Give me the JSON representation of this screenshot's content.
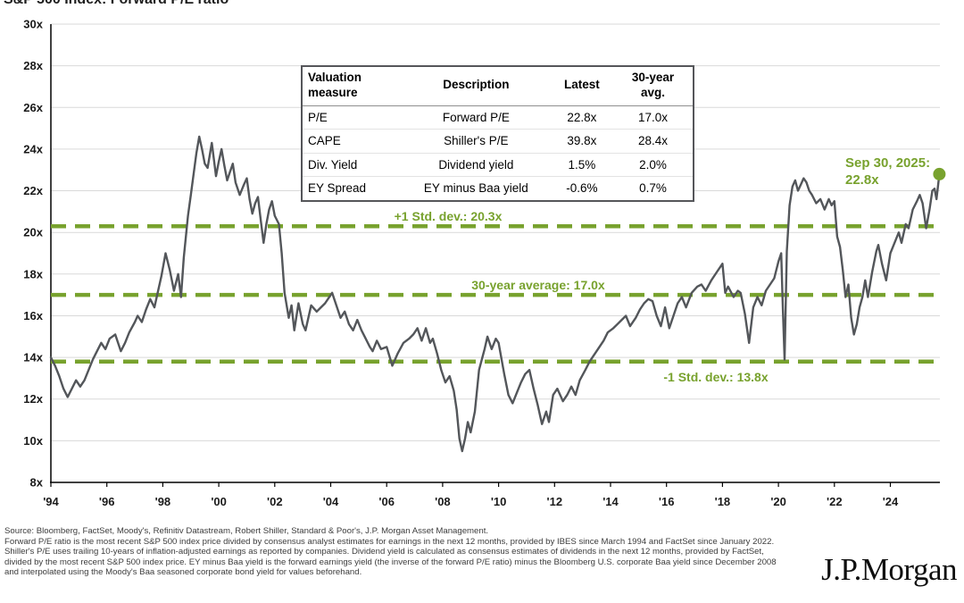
{
  "title": "S&P 500 Index: Forward P/E ratio",
  "chart_data": {
    "type": "line",
    "title": "S&P 500 Index: Forward P/E ratio",
    "grid": "horizontal",
    "x_axis": {
      "range": [
        1994,
        2025.83
      ],
      "tick_years": [
        1994,
        1996,
        1998,
        2000,
        2002,
        2004,
        2006,
        2008,
        2010,
        2012,
        2014,
        2016,
        2018,
        2020,
        2022,
        2024
      ],
      "ticks": [
        "'94",
        "'96",
        "'98",
        "'00",
        "'02",
        "'04",
        "'06",
        "'08",
        "'10",
        "'12",
        "'14",
        "'16",
        "'18",
        "'20",
        "'22",
        "'24"
      ]
    },
    "y_axis": {
      "range": [
        8,
        30
      ],
      "tick_values": [
        8,
        10,
        12,
        14,
        16,
        18,
        20,
        22,
        24,
        26,
        28,
        30
      ],
      "ticks": [
        "8x",
        "10x",
        "12x",
        "14x",
        "16x",
        "18x",
        "20x",
        "22x",
        "24x",
        "26x",
        "28x",
        "30x"
      ]
    },
    "reference_lines": [
      {
        "label": "+1 Std. dev.: 20.3x",
        "value": 20.3
      },
      {
        "label": "30-year average: 17.0x",
        "value": 17.0
      },
      {
        "label": "-1 Std. dev.: 13.8x",
        "value": 13.8
      }
    ],
    "end_point": {
      "x": 2025.75,
      "y": 22.8,
      "label_line1": "Sep 30, 2025:",
      "label_line2": "22.8x"
    },
    "colors": {
      "line": "#53565a",
      "accent_green": "#78a22e",
      "gridline": "#d9d9d9",
      "axis": "#000000"
    },
    "series": [
      {
        "name": "S&P 500 forward P/E",
        "points": [
          [
            1994.0,
            14.0
          ],
          [
            1994.15,
            13.6
          ],
          [
            1994.3,
            13.1
          ],
          [
            1994.45,
            12.5
          ],
          [
            1994.6,
            12.1
          ],
          [
            1994.75,
            12.5
          ],
          [
            1994.9,
            12.9
          ],
          [
            1995.05,
            12.6
          ],
          [
            1995.2,
            12.9
          ],
          [
            1995.35,
            13.4
          ],
          [
            1995.5,
            13.9
          ],
          [
            1995.65,
            14.3
          ],
          [
            1995.8,
            14.7
          ],
          [
            1995.95,
            14.4
          ],
          [
            1996.1,
            14.9
          ],
          [
            1996.3,
            15.1
          ],
          [
            1996.5,
            14.3
          ],
          [
            1996.65,
            14.7
          ],
          [
            1996.8,
            15.2
          ],
          [
            1997.0,
            15.7
          ],
          [
            1997.1,
            16.0
          ],
          [
            1997.25,
            15.7
          ],
          [
            1997.4,
            16.3
          ],
          [
            1997.55,
            16.8
          ],
          [
            1997.7,
            16.4
          ],
          [
            1997.8,
            17.0
          ],
          [
            1997.95,
            17.9
          ],
          [
            1998.1,
            19.0
          ],
          [
            1998.25,
            18.2
          ],
          [
            1998.4,
            17.2
          ],
          [
            1998.55,
            18.0
          ],
          [
            1998.65,
            16.9
          ],
          [
            1998.75,
            18.8
          ],
          [
            1998.9,
            20.8
          ],
          [
            1999.0,
            21.8
          ],
          [
            1999.1,
            22.8
          ],
          [
            1999.2,
            23.8
          ],
          [
            1999.3,
            24.6
          ],
          [
            1999.4,
            24.0
          ],
          [
            1999.5,
            23.3
          ],
          [
            1999.6,
            23.1
          ],
          [
            1999.75,
            24.3
          ],
          [
            1999.9,
            22.7
          ],
          [
            2000.0,
            23.4
          ],
          [
            2000.1,
            24.0
          ],
          [
            2000.2,
            23.2
          ],
          [
            2000.3,
            22.5
          ],
          [
            2000.4,
            22.9
          ],
          [
            2000.5,
            23.3
          ],
          [
            2000.6,
            22.4
          ],
          [
            2000.75,
            21.8
          ],
          [
            2000.9,
            22.3
          ],
          [
            2001.0,
            22.6
          ],
          [
            2001.1,
            21.6
          ],
          [
            2001.2,
            20.9
          ],
          [
            2001.3,
            21.4
          ],
          [
            2001.4,
            21.7
          ],
          [
            2001.5,
            20.6
          ],
          [
            2001.6,
            19.5
          ],
          [
            2001.7,
            20.4
          ],
          [
            2001.8,
            21.1
          ],
          [
            2001.9,
            21.5
          ],
          [
            2002.0,
            20.8
          ],
          [
            2002.15,
            20.4
          ],
          [
            2002.25,
            19.0
          ],
          [
            2002.35,
            17.1
          ],
          [
            2002.5,
            15.9
          ],
          [
            2002.6,
            16.5
          ],
          [
            2002.7,
            15.3
          ],
          [
            2002.85,
            16.6
          ],
          [
            2003.0,
            15.6
          ],
          [
            2003.1,
            15.3
          ],
          [
            2003.3,
            16.5
          ],
          [
            2003.5,
            16.2
          ],
          [
            2003.65,
            16.4
          ],
          [
            2003.8,
            16.6
          ],
          [
            2004.05,
            17.1
          ],
          [
            2004.2,
            16.5
          ],
          [
            2004.35,
            15.9
          ],
          [
            2004.5,
            16.2
          ],
          [
            2004.65,
            15.6
          ],
          [
            2004.8,
            15.3
          ],
          [
            2004.95,
            15.8
          ],
          [
            2005.1,
            15.3
          ],
          [
            2005.25,
            14.9
          ],
          [
            2005.4,
            14.5
          ],
          [
            2005.5,
            14.3
          ],
          [
            2005.65,
            14.8
          ],
          [
            2005.8,
            14.4
          ],
          [
            2006.0,
            14.5
          ],
          [
            2006.2,
            13.6
          ],
          [
            2006.4,
            14.2
          ],
          [
            2006.6,
            14.7
          ],
          [
            2006.8,
            14.9
          ],
          [
            2006.95,
            15.1
          ],
          [
            2007.1,
            15.4
          ],
          [
            2007.25,
            14.8
          ],
          [
            2007.4,
            15.4
          ],
          [
            2007.55,
            14.7
          ],
          [
            2007.65,
            14.9
          ],
          [
            2007.8,
            14.2
          ],
          [
            2007.95,
            13.4
          ],
          [
            2008.1,
            12.8
          ],
          [
            2008.25,
            13.1
          ],
          [
            2008.4,
            12.4
          ],
          [
            2008.5,
            11.5
          ],
          [
            2008.6,
            10.1
          ],
          [
            2008.7,
            9.5
          ],
          [
            2008.8,
            10.1
          ],
          [
            2008.9,
            10.9
          ],
          [
            2009.0,
            10.4
          ],
          [
            2009.15,
            11.4
          ],
          [
            2009.3,
            13.4
          ],
          [
            2009.5,
            14.4
          ],
          [
            2009.6,
            15.0
          ],
          [
            2009.75,
            14.4
          ],
          [
            2009.9,
            14.9
          ],
          [
            2010.0,
            14.7
          ],
          [
            2010.2,
            13.2
          ],
          [
            2010.35,
            12.2
          ],
          [
            2010.5,
            11.8
          ],
          [
            2010.65,
            12.3
          ],
          [
            2010.8,
            12.8
          ],
          [
            2010.95,
            13.2
          ],
          [
            2011.1,
            13.4
          ],
          [
            2011.25,
            12.5
          ],
          [
            2011.4,
            11.7
          ],
          [
            2011.55,
            10.8
          ],
          [
            2011.7,
            11.4
          ],
          [
            2011.8,
            10.9
          ],
          [
            2011.95,
            12.2
          ],
          [
            2012.1,
            12.5
          ],
          [
            2012.3,
            11.9
          ],
          [
            2012.45,
            12.2
          ],
          [
            2012.6,
            12.6
          ],
          [
            2012.75,
            12.2
          ],
          [
            2012.9,
            12.9
          ],
          [
            2013.1,
            13.4
          ],
          [
            2013.25,
            13.8
          ],
          [
            2013.4,
            14.1
          ],
          [
            2013.6,
            14.5
          ],
          [
            2013.75,
            14.8
          ],
          [
            2013.9,
            15.2
          ],
          [
            2014.1,
            15.4
          ],
          [
            2014.25,
            15.6
          ],
          [
            2014.4,
            15.8
          ],
          [
            2014.55,
            16.0
          ],
          [
            2014.7,
            15.5
          ],
          [
            2014.9,
            15.9
          ],
          [
            2015.05,
            16.3
          ],
          [
            2015.2,
            16.6
          ],
          [
            2015.35,
            16.8
          ],
          [
            2015.5,
            16.7
          ],
          [
            2015.65,
            16.0
          ],
          [
            2015.8,
            15.5
          ],
          [
            2015.95,
            16.4
          ],
          [
            2016.1,
            15.4
          ],
          [
            2016.25,
            16.0
          ],
          [
            2016.4,
            16.6
          ],
          [
            2016.55,
            16.9
          ],
          [
            2016.7,
            16.4
          ],
          [
            2016.9,
            17.1
          ],
          [
            2017.1,
            17.4
          ],
          [
            2017.25,
            17.5
          ],
          [
            2017.4,
            17.2
          ],
          [
            2017.6,
            17.7
          ],
          [
            2017.8,
            18.1
          ],
          [
            2018.0,
            18.5
          ],
          [
            2018.1,
            17.1
          ],
          [
            2018.2,
            17.4
          ],
          [
            2018.4,
            16.9
          ],
          [
            2018.55,
            17.2
          ],
          [
            2018.65,
            17.1
          ],
          [
            2018.8,
            16.1
          ],
          [
            2018.95,
            14.7
          ],
          [
            2019.1,
            16.4
          ],
          [
            2019.25,
            16.9
          ],
          [
            2019.4,
            16.5
          ],
          [
            2019.55,
            17.2
          ],
          [
            2019.7,
            17.5
          ],
          [
            2019.85,
            17.8
          ],
          [
            2020.0,
            18.6
          ],
          [
            2020.1,
            19.0
          ],
          [
            2020.16,
            16.3
          ],
          [
            2020.22,
            13.9
          ],
          [
            2020.3,
            19.1
          ],
          [
            2020.4,
            21.3
          ],
          [
            2020.5,
            22.2
          ],
          [
            2020.6,
            22.5
          ],
          [
            2020.7,
            22.0
          ],
          [
            2020.8,
            22.3
          ],
          [
            2020.9,
            22.6
          ],
          [
            2021.0,
            22.4
          ],
          [
            2021.1,
            22.0
          ],
          [
            2021.2,
            21.8
          ],
          [
            2021.35,
            21.4
          ],
          [
            2021.5,
            21.6
          ],
          [
            2021.65,
            21.1
          ],
          [
            2021.8,
            21.6
          ],
          [
            2021.9,
            21.3
          ],
          [
            2022.0,
            21.5
          ],
          [
            2022.1,
            19.8
          ],
          [
            2022.2,
            19.3
          ],
          [
            2022.3,
            18.2
          ],
          [
            2022.4,
            16.9
          ],
          [
            2022.5,
            17.5
          ],
          [
            2022.6,
            15.9
          ],
          [
            2022.7,
            15.1
          ],
          [
            2022.8,
            15.6
          ],
          [
            2022.9,
            16.4
          ],
          [
            2023.0,
            16.9
          ],
          [
            2023.1,
            17.7
          ],
          [
            2023.2,
            16.9
          ],
          [
            2023.35,
            18.1
          ],
          [
            2023.5,
            19.1
          ],
          [
            2023.57,
            19.4
          ],
          [
            2023.7,
            18.5
          ],
          [
            2023.85,
            17.7
          ],
          [
            2024.0,
            19.0
          ],
          [
            2024.15,
            19.5
          ],
          [
            2024.3,
            20.0
          ],
          [
            2024.4,
            19.5
          ],
          [
            2024.55,
            20.4
          ],
          [
            2024.65,
            20.2
          ],
          [
            2024.8,
            21.1
          ],
          [
            2024.95,
            21.5
          ],
          [
            2025.05,
            21.8
          ],
          [
            2025.15,
            21.4
          ],
          [
            2025.28,
            20.2
          ],
          [
            2025.4,
            21.1
          ],
          [
            2025.5,
            22.0
          ],
          [
            2025.58,
            22.1
          ],
          [
            2025.65,
            21.6
          ],
          [
            2025.75,
            22.8
          ]
        ]
      }
    ]
  },
  "table": {
    "headers": [
      "Valuation measure",
      "Description",
      "Latest",
      "30-year avg."
    ],
    "rows": [
      [
        "P/E",
        "Forward P/E",
        "22.8x",
        "17.0x"
      ],
      [
        "CAPE",
        "Shiller's P/E",
        "39.8x",
        "28.4x"
      ],
      [
        "Div. Yield",
        "Dividend yield",
        "1.5%",
        "2.0%"
      ],
      [
        "EY Spread",
        "EY minus Baa yield",
        "-0.6%",
        "0.7%"
      ]
    ]
  },
  "footer": {
    "source_line": "Source: Bloomberg, FactSet, Moody's, Refinitiv Datastream, Robert Shiller, Standard & Poor's, J.P. Morgan Asset Management.",
    "note": "Forward P/E ratio is the most recent S&P 500 index price divided by consensus analyst estimates for earnings in the next 12 months, provided by IBES since March 1994 and FactSet since January 2022. Shiller's P/E uses trailing 10-years of inflation-adjusted earnings as reported by companies. Dividend yield is calculated as consensus estimates of dividends in the next 12 months, provided by FactSet, divided by the most recent S&P 500 index price. EY minus Baa yield is the forward earnings yield (the inverse of the forward P/E ratio) minus the Bloomberg U.S. corporate Baa yield since December 2008 and interpolated using the Moody's Baa seasoned corporate bond yield for values beforehand.",
    "logo": "J.P.Morgan"
  }
}
